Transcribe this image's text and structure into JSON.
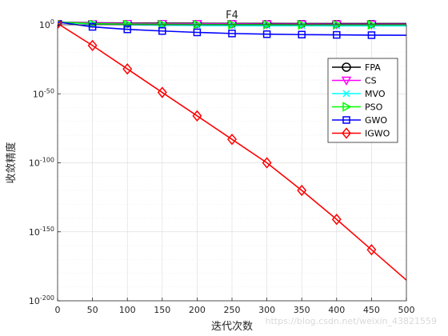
{
  "chart_data": {
    "type": "line",
    "title": "F4",
    "xlabel": "迭代次数",
    "ylabel": "收敛精度",
    "xlim": [
      0,
      500
    ],
    "y_scale": "log",
    "ylim_exponent": [
      -200,
      0
    ],
    "x_ticks": [
      "0",
      "50",
      "100",
      "150",
      "200",
      "250",
      "300",
      "350",
      "400",
      "450",
      "500"
    ],
    "y_ticks": [
      {
        "base": "10",
        "exp": "0"
      },
      {
        "base": "10",
        "exp": "-50"
      },
      {
        "base": "10",
        "exp": "-100"
      },
      {
        "base": "10",
        "exp": "-150"
      },
      {
        "base": "10",
        "exp": "-200"
      }
    ],
    "grid": true,
    "minor_grid": true,
    "legend_position": "top-right",
    "x": [
      0,
      50,
      100,
      150,
      200,
      250,
      300,
      350,
      400,
      450,
      500
    ],
    "series": [
      {
        "name": "FPA",
        "color": "#000000",
        "marker": "circle",
        "log10_values": [
          2,
          1.5,
          1.3,
          1.2,
          1.1,
          1.0,
          1.0,
          0.9,
          0.9,
          0.9,
          0.9
        ]
      },
      {
        "name": "CS",
        "color": "#ff00ff",
        "marker": "triangle-down",
        "log10_values": [
          2,
          1.2,
          1.0,
          0.8,
          0.7,
          0.6,
          0.5,
          0.5,
          0.4,
          0.4,
          0.4
        ]
      },
      {
        "name": "MVO",
        "color": "#00ffff",
        "marker": "x",
        "log10_values": [
          2,
          0.5,
          0.0,
          -0.3,
          -0.5,
          -0.6,
          -0.7,
          -0.7,
          -0.8,
          -0.8,
          -0.8
        ]
      },
      {
        "name": "PSO",
        "color": "#00ff00",
        "marker": "triangle-right",
        "log10_values": [
          2,
          0.8,
          0.5,
          0.3,
          0.2,
          0.1,
          0.1,
          0.0,
          0.0,
          0.0,
          0.0
        ]
      },
      {
        "name": "GWO",
        "color": "#0000ff",
        "marker": "square",
        "log10_values": [
          2,
          -1.5,
          -3.3,
          -4.5,
          -5.5,
          -6.3,
          -6.8,
          -7.1,
          -7.3,
          -7.5,
          -7.6
        ]
      },
      {
        "name": "IGWO",
        "color": "#ff0000",
        "marker": "diamond",
        "log10_values": [
          1,
          -15,
          -32,
          -49,
          -66,
          -83,
          -100,
          -120,
          -141,
          -163,
          -185
        ]
      }
    ]
  },
  "watermark": "https://blog.csdn.net/weixin_43821559"
}
